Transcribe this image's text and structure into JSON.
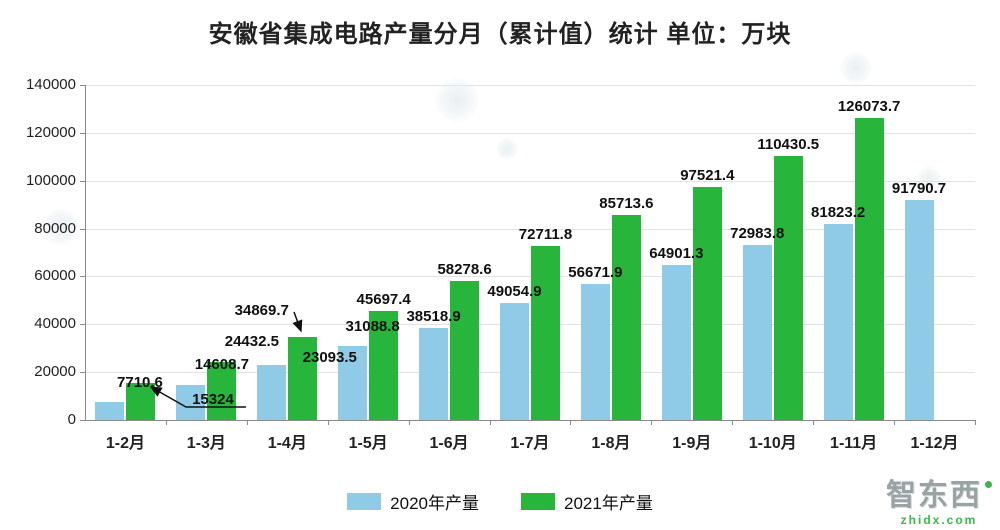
{
  "chart_data": {
    "type": "bar",
    "title": "安徽省集成电路产量分月（累计值）统计 单位：万块",
    "categories": [
      "1-2月",
      "1-3月",
      "1-4月",
      "1-5月",
      "1-6月",
      "1-7月",
      "1-8月",
      "1-9月",
      "1-10月",
      "1-11月",
      "1-12月"
    ],
    "series": [
      {
        "name": "2020年产量",
        "color": "#8fcae7",
        "values": [
          7710.6,
          14608.7,
          23093.5,
          31088.8,
          38518.9,
          49054.9,
          56671.9,
          64901.3,
          72983.8,
          81823.2,
          91790.7
        ]
      },
      {
        "name": "2021年产量",
        "color": "#27b53c",
        "values": [
          15324,
          24432.5,
          34869.7,
          45697.4,
          58278.6,
          72711.8,
          85713.6,
          97521.4,
          110430.5,
          126073.7,
          null
        ]
      }
    ],
    "ylim": [
      0,
      140000
    ],
    "ytick_step": 20000,
    "yticks": [
      "0",
      "20000",
      "40000",
      "60000",
      "80000",
      "100000",
      "120000",
      "140000"
    ],
    "grid": true,
    "legend_position": "bottom",
    "value_labels": true,
    "annotated_values": [
      "15324",
      "34869.7"
    ]
  },
  "watermark": {
    "brand": "智东西",
    "domain": "zhidx.com"
  }
}
